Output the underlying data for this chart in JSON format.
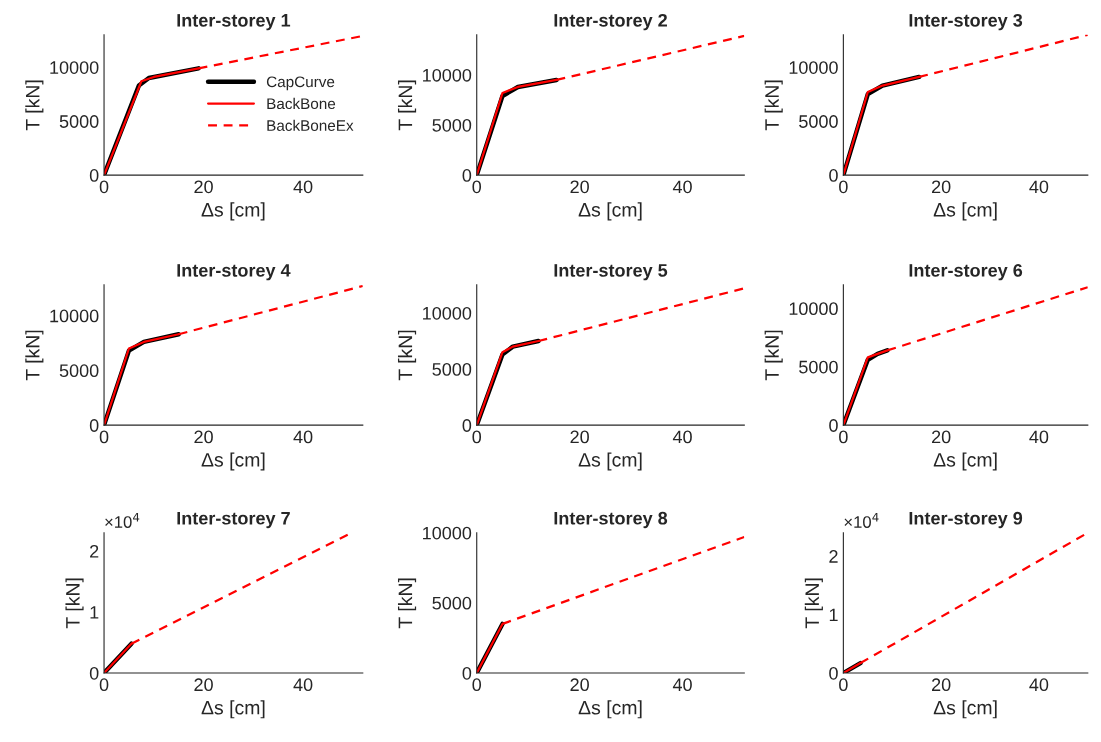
{
  "chart_data": [
    {
      "type": "line",
      "title": "Inter-storey 1",
      "xlabel": "Δs [cm]",
      "ylabel": "T [kN]",
      "xlim": [
        0,
        52
      ],
      "xticks": [
        0,
        20,
        40
      ],
      "ylim": [
        0,
        13000
      ],
      "yticks": [
        0,
        5000,
        10000
      ],
      "legend": "right",
      "grid": false,
      "series": [
        {
          "name": "CapCurve",
          "color": "#000000",
          "line_style": "solid",
          "x": [
            0,
            7,
            9,
            19
          ],
          "values": [
            0,
            8300,
            9000,
            9900
          ]
        },
        {
          "name": "BackBone",
          "color": "#ff0000",
          "line_style": "solid",
          "x": [
            0,
            7.5,
            10,
            19
          ],
          "values": [
            0,
            8700,
            9100,
            9900
          ]
        },
        {
          "name": "BackBoneEx",
          "color": "#ff0000",
          "line_style": "dashed",
          "x": [
            19,
            52
          ],
          "values": [
            9900,
            12900
          ]
        }
      ]
    },
    {
      "type": "line",
      "title": "Inter-storey 2",
      "xlabel": "Δs [cm]",
      "ylabel": "T [kN]",
      "xlim": [
        0,
        52
      ],
      "xticks": [
        0,
        20,
        40
      ],
      "ylim": [
        0,
        14000
      ],
      "yticks": [
        0,
        5000,
        10000
      ],
      "grid": false,
      "series": [
        {
          "color": "#000000",
          "line_style": "solid",
          "x": [
            0,
            5,
            8,
            15.5
          ],
          "values": [
            0,
            7900,
            8800,
            9500
          ]
        },
        {
          "color": "#ff0000",
          "line_style": "solid",
          "x": [
            0,
            5,
            8,
            15.5
          ],
          "values": [
            0,
            8200,
            8800,
            9500
          ]
        },
        {
          "color": "#ff0000",
          "line_style": "dashed",
          "x": [
            15.5,
            52
          ],
          "values": [
            9500,
            13900
          ]
        }
      ]
    },
    {
      "type": "line",
      "title": "Inter-storey 3",
      "xlabel": "Δs [cm]",
      "ylabel": "T [kN]",
      "xlim": [
        0,
        50
      ],
      "xticks": [
        0,
        20,
        40
      ],
      "ylim": [
        0,
        13000
      ],
      "yticks": [
        0,
        5000,
        10000
      ],
      "grid": false,
      "series": [
        {
          "color": "#000000",
          "line_style": "solid",
          "x": [
            0,
            5,
            8,
            15.5
          ],
          "values": [
            0,
            7500,
            8300,
            9100
          ]
        },
        {
          "color": "#ff0000",
          "line_style": "solid",
          "x": [
            0,
            5,
            8,
            15.5
          ],
          "values": [
            0,
            7700,
            8300,
            9100
          ]
        },
        {
          "color": "#ff0000",
          "line_style": "dashed",
          "x": [
            15.5,
            50
          ],
          "values": [
            9100,
            13000
          ]
        }
      ]
    },
    {
      "type": "line",
      "title": "Inter-storey 4",
      "xlabel": "Δs [cm]",
      "ylabel": "T [kN]",
      "xlim": [
        0,
        52
      ],
      "xticks": [
        0,
        20,
        40
      ],
      "ylim": [
        0,
        12800
      ],
      "yticks": [
        0,
        5000,
        10000
      ],
      "grid": false,
      "series": [
        {
          "color": "#000000",
          "line_style": "solid",
          "x": [
            0,
            5,
            8,
            15
          ],
          "values": [
            0,
            6800,
            7600,
            8300
          ]
        },
        {
          "color": "#ff0000",
          "line_style": "solid",
          "x": [
            0,
            5,
            8,
            15
          ],
          "values": [
            0,
            7000,
            7600,
            8300
          ]
        },
        {
          "color": "#ff0000",
          "line_style": "dashed",
          "x": [
            15,
            52
          ],
          "values": [
            8300,
            12700
          ]
        }
      ]
    },
    {
      "type": "line",
      "title": "Inter-storey 5",
      "xlabel": "Δs [cm]",
      "ylabel": "T [kN]",
      "xlim": [
        0,
        52
      ],
      "xticks": [
        0,
        20,
        40
      ],
      "ylim": [
        0,
        12500
      ],
      "yticks": [
        0,
        5000,
        10000
      ],
      "grid": false,
      "series": [
        {
          "color": "#000000",
          "line_style": "solid",
          "x": [
            0,
            5,
            7,
            12
          ],
          "values": [
            0,
            6300,
            7000,
            7500
          ]
        },
        {
          "color": "#ff0000",
          "line_style": "solid",
          "x": [
            0,
            5,
            7,
            12
          ],
          "values": [
            0,
            6500,
            7000,
            7500
          ]
        },
        {
          "color": "#ff0000",
          "line_style": "dashed",
          "x": [
            12,
            52
          ],
          "values": [
            7500,
            12200
          ]
        }
      ]
    },
    {
      "type": "line",
      "title": "Inter-storey 6",
      "xlabel": "Δs [cm]",
      "ylabel": "T [kN]",
      "xlim": [
        0,
        50
      ],
      "xticks": [
        0,
        20,
        40
      ],
      "ylim": [
        0,
        12000
      ],
      "yticks": [
        0,
        5000,
        10000
      ],
      "grid": false,
      "series": [
        {
          "color": "#000000",
          "line_style": "solid",
          "x": [
            0,
            5,
            7,
            9
          ],
          "values": [
            0,
            5600,
            6100,
            6400
          ]
        },
        {
          "color": "#ff0000",
          "line_style": "solid",
          "x": [
            0,
            5,
            7,
            9
          ],
          "values": [
            0,
            5800,
            6100,
            6400
          ]
        },
        {
          "color": "#ff0000",
          "line_style": "dashed",
          "x": [
            9,
            50
          ],
          "values": [
            6400,
            11800
          ]
        }
      ]
    },
    {
      "type": "line",
      "title": "Inter-storey 7",
      "xlabel": "Δs [cm]",
      "ylabel": "T [kN]",
      "xlim": [
        0,
        52
      ],
      "xticks": [
        0,
        20,
        40
      ],
      "ylim": [
        0,
        2.3
      ],
      "yticks": [
        0,
        1,
        2
      ],
      "annotations": [
        "×10$^{4}$"
      ],
      "grid": false,
      "series": [
        {
          "color": "#000000",
          "line_style": "solid",
          "x": [
            0,
            5.5
          ],
          "values": [
            0,
            0.48
          ]
        },
        {
          "color": "#ff0000",
          "line_style": "solid",
          "x": [
            0,
            5.5
          ],
          "values": [
            0,
            0.48
          ]
        },
        {
          "color": "#ff0000",
          "line_style": "dashed",
          "x": [
            5.5,
            49
          ],
          "values": [
            0.48,
            2.27
          ]
        }
      ]
    },
    {
      "type": "line",
      "title": "Inter-storey 8",
      "xlabel": "Δs [cm]",
      "ylabel": "T [kN]",
      "xlim": [
        0,
        52
      ],
      "xticks": [
        0,
        20,
        40
      ],
      "ylim": [
        0,
        10000
      ],
      "yticks": [
        0,
        5000,
        10000
      ],
      "grid": false,
      "series": [
        {
          "color": "#000000",
          "line_style": "solid",
          "x": [
            0,
            5
          ],
          "values": [
            0,
            3500
          ]
        },
        {
          "color": "#ff0000",
          "line_style": "solid",
          "x": [
            0,
            5
          ],
          "values": [
            0,
            3500
          ]
        },
        {
          "color": "#ff0000",
          "line_style": "dashed",
          "x": [
            5,
            52
          ],
          "values": [
            3500,
            9700
          ]
        }
      ]
    },
    {
      "type": "line",
      "title": "Inter-storey 9",
      "xlabel": "Δs [cm]",
      "ylabel": "T [kN]",
      "xlim": [
        0,
        50
      ],
      "xticks": [
        0,
        20,
        40
      ],
      "ylim": [
        0,
        2.4
      ],
      "yticks": [
        0,
        1,
        2
      ],
      "annotations": [
        "×10$^{4}$"
      ],
      "grid": false,
      "series": [
        {
          "color": "#000000",
          "line_style": "solid",
          "x": [
            0,
            3.5
          ],
          "values": [
            0,
            0.17
          ]
        },
        {
          "color": "#ff0000",
          "line_style": "solid",
          "x": [
            0,
            3.5
          ],
          "values": [
            0,
            0.17
          ]
        },
        {
          "color": "#ff0000",
          "line_style": "dashed",
          "x": [
            3.5,
            50
          ],
          "values": [
            0.17,
            2.4
          ]
        }
      ]
    }
  ]
}
